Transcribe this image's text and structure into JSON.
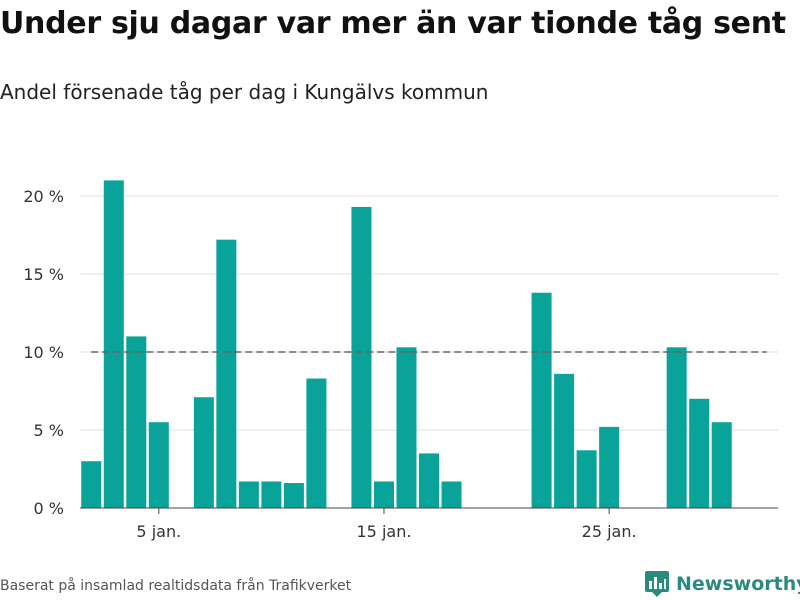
{
  "header": {
    "title": "Under sju dagar var mer än var tionde tåg sent",
    "subtitle": "Andel försenade tåg per dag i Kungälvs kommun"
  },
  "footer": {
    "source": "Baserat på insamlad realtidsdata från Trafikverket",
    "brand": "Newsworthy"
  },
  "colors": {
    "bar": "#0aa39a",
    "reference_line": "#666666",
    "grid": "#dcdcdc",
    "brand": "#2a8a80"
  },
  "icons": {
    "brand_logo": "newsworthy-logo-icon"
  },
  "chart_data": {
    "type": "bar",
    "title": "Under sju dagar var mer än var tionde tåg sent",
    "subtitle": "Andel försenade tåg per dag i Kungälvs kommun",
    "x": [
      2,
      3,
      4,
      5,
      6,
      7,
      8,
      9,
      10,
      11,
      12,
      13,
      14,
      15,
      16,
      17,
      18,
      19,
      20,
      21,
      22,
      23,
      24,
      25,
      26,
      27,
      28,
      29,
      30,
      31
    ],
    "values": [
      3.0,
      21.0,
      11.0,
      5.5,
      null,
      7.1,
      17.2,
      1.7,
      1.7,
      1.6,
      8.3,
      null,
      19.3,
      1.7,
      10.3,
      3.5,
      1.7,
      null,
      null,
      null,
      13.8,
      8.6,
      3.7,
      5.2,
      null,
      null,
      10.3,
      7.0,
      5.5,
      null
    ],
    "x_ticks": [
      {
        "value": 5,
        "label": "5 jan."
      },
      {
        "value": 15,
        "label": "15 jan."
      },
      {
        "value": 25,
        "label": "25 jan."
      }
    ],
    "y_ticks": [
      {
        "value": 0,
        "label": "0 %"
      },
      {
        "value": 5,
        "label": "5 %"
      },
      {
        "value": 10,
        "label": "10 %"
      },
      {
        "value": 15,
        "label": "15 %"
      },
      {
        "value": 20,
        "label": "20 %"
      }
    ],
    "ylim": [
      0,
      20
    ],
    "xlim": [
      1.5,
      32.5
    ],
    "reference_line": {
      "value": 10,
      "style": "dashed",
      "x_from": 2,
      "x_to": 32
    },
    "grid": true
  }
}
